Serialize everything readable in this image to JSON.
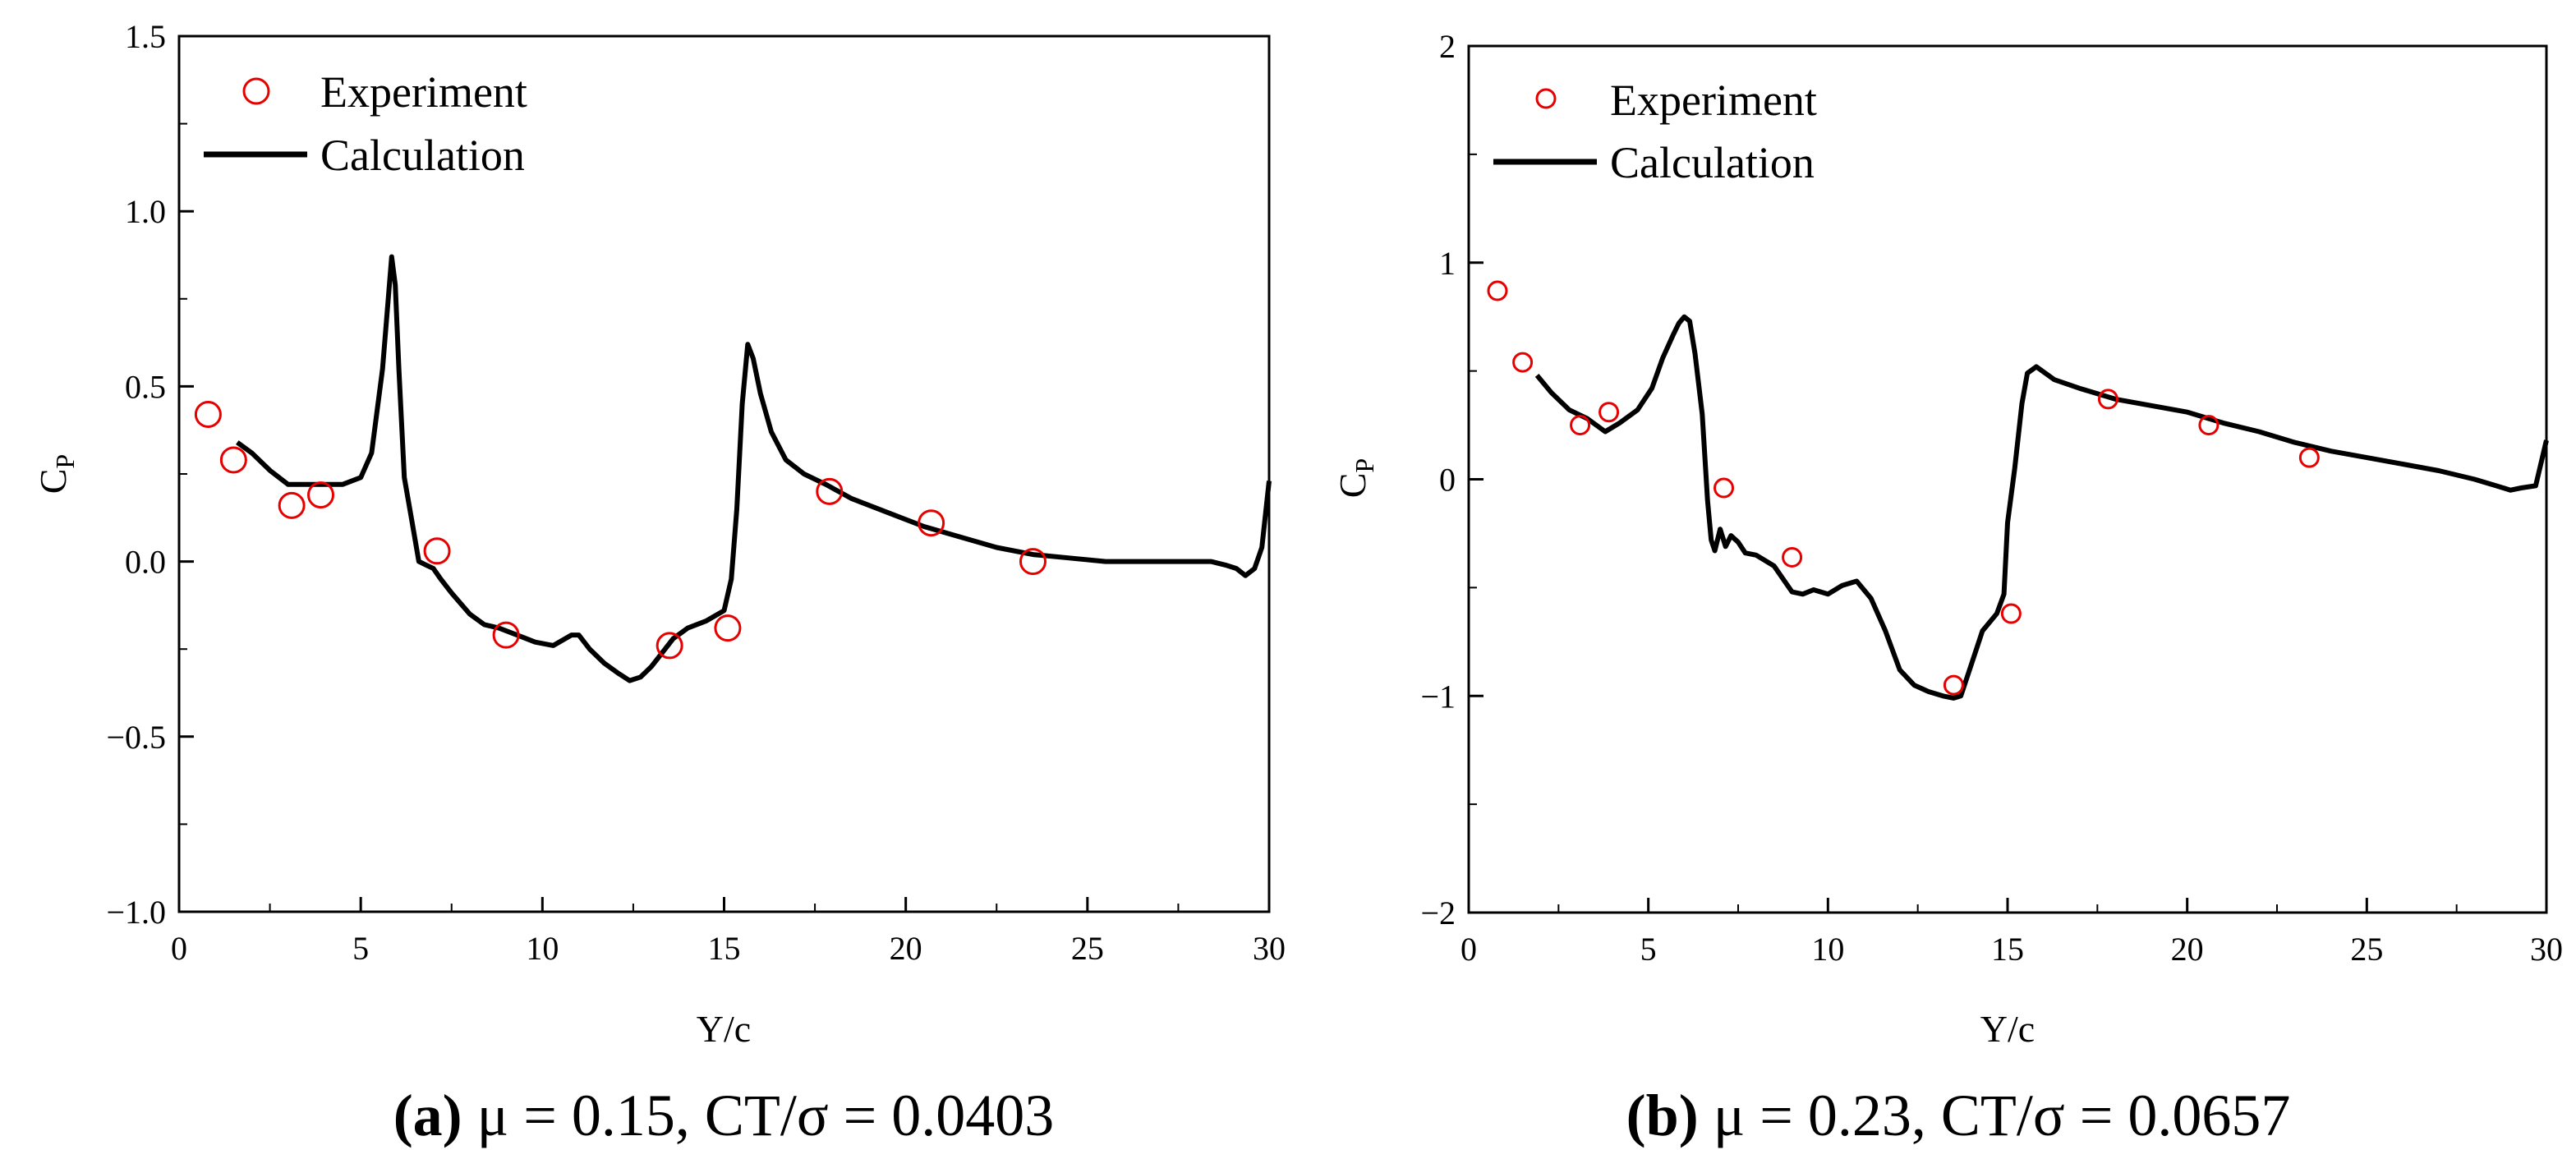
{
  "chart_data": [
    {
      "type": "line",
      "panel": "a",
      "caption_letter": "(a)",
      "caption_text": "μ = 0.15, CT/σ = 0.0403",
      "xlabel": "Y/c",
      "ylabel": "CP",
      "xlim": [
        0,
        30
      ],
      "ylim": [
        -1.0,
        1.5
      ],
      "xticks": [
        0,
        5,
        10,
        15,
        20,
        25,
        30
      ],
      "xtick_labels": [
        "0",
        "5",
        "10",
        "15",
        "20",
        "25",
        "30"
      ],
      "yticks": [
        -1.0,
        -0.5,
        0.0,
        0.5,
        1.0,
        1.5
      ],
      "ytick_labels": [
        "−1.0",
        "−0.5",
        "0.0",
        "0.5",
        "1.0",
        "1.5"
      ],
      "legend": {
        "position": "top-left",
        "experiment_label": "Experiment",
        "calculation_label": "Calculation"
      },
      "series": [
        {
          "name": "Experiment",
          "kind": "marker",
          "x": [
            0.8,
            1.5,
            3.1,
            3.9,
            7.1,
            9.0,
            13.5,
            15.1,
            17.9,
            20.7,
            23.5
          ],
          "y": [
            0.42,
            0.29,
            0.16,
            0.19,
            0.03,
            -0.21,
            -0.24,
            -0.19,
            0.2,
            0.11,
            0.0
          ]
        },
        {
          "name": "Calculation",
          "kind": "line",
          "x": [
            1.6,
            2.0,
            2.5,
            3.0,
            3.5,
            4.0,
            4.5,
            5.0,
            5.3,
            5.6,
            5.75,
            5.85,
            5.95,
            6.05,
            6.2,
            6.4,
            6.6,
            6.8,
            7.0,
            7.2,
            7.5,
            8.0,
            8.4,
            8.8,
            9.3,
            9.8,
            10.3,
            10.8,
            11.0,
            11.3,
            11.7,
            12.1,
            12.4,
            12.7,
            13.0,
            13.3,
            13.6,
            14.0,
            14.5,
            15.0,
            15.2,
            15.35,
            15.5,
            15.65,
            15.8,
            16.0,
            16.3,
            16.7,
            17.2,
            17.8,
            18.5,
            19.5,
            20.5,
            21.5,
            22.5,
            23.5,
            24.5,
            25.5,
            26.5,
            27.5,
            28.4,
            28.8,
            29.1,
            29.35,
            29.6,
            29.8,
            30.0
          ],
          "y": [
            0.34,
            0.31,
            0.26,
            0.22,
            0.22,
            0.22,
            0.22,
            0.24,
            0.31,
            0.55,
            0.74,
            0.87,
            0.79,
            0.55,
            0.24,
            0.12,
            0.0,
            -0.01,
            -0.02,
            -0.05,
            -0.09,
            -0.15,
            -0.18,
            -0.19,
            -0.21,
            -0.23,
            -0.24,
            -0.21,
            -0.21,
            -0.25,
            -0.29,
            -0.32,
            -0.34,
            -0.33,
            -0.3,
            -0.26,
            -0.22,
            -0.19,
            -0.17,
            -0.14,
            -0.05,
            0.15,
            0.45,
            0.62,
            0.58,
            0.48,
            0.37,
            0.29,
            0.25,
            0.22,
            0.18,
            0.14,
            0.1,
            0.07,
            0.04,
            0.02,
            0.01,
            0.0,
            0.0,
            0.0,
            0.0,
            -0.01,
            -0.02,
            -0.04,
            -0.02,
            0.04,
            0.23
          ]
        }
      ]
    },
    {
      "type": "line",
      "panel": "b",
      "caption_letter": "(b)",
      "caption_text": "μ = 0.23, CT/σ = 0.0657",
      "xlabel": "Y/c",
      "ylabel": "CP",
      "xlim": [
        0,
        30
      ],
      "ylim": [
        -2,
        2
      ],
      "xticks": [
        0,
        5,
        10,
        15,
        20,
        25,
        30
      ],
      "xtick_labels": [
        "0",
        "5",
        "10",
        "15",
        "20",
        "25",
        "30"
      ],
      "yticks": [
        -2,
        -1,
        0,
        1,
        2
      ],
      "ytick_labels": [
        "−2",
        "−1",
        "0",
        "1",
        "2"
      ],
      "legend": {
        "position": "top-left",
        "experiment_label": "Experiment",
        "calculation_label": "Calculation"
      },
      "series": [
        {
          "name": "Experiment",
          "kind": "marker",
          "x": [
            0.8,
            1.5,
            3.1,
            3.9,
            7.1,
            9.0,
            13.5,
            15.1,
            17.8,
            20.6,
            23.4
          ],
          "y": [
            0.87,
            0.54,
            0.25,
            0.31,
            -0.04,
            -0.36,
            -0.95,
            -0.62,
            0.37,
            0.25,
            0.1
          ]
        },
        {
          "name": "Calculation",
          "kind": "line",
          "x": [
            1.9,
            2.3,
            2.8,
            3.3,
            3.8,
            4.2,
            4.7,
            5.1,
            5.4,
            5.7,
            5.85,
            6.0,
            6.15,
            6.3,
            6.5,
            6.65,
            6.75,
            6.85,
            7.0,
            7.15,
            7.3,
            7.5,
            7.7,
            8.0,
            8.5,
            9.0,
            9.3,
            9.6,
            10.0,
            10.4,
            10.8,
            11.2,
            11.6,
            12.0,
            12.4,
            12.8,
            13.2,
            13.5,
            13.7,
            14.0,
            14.3,
            14.7,
            14.9,
            15.0,
            15.2,
            15.4,
            15.55,
            15.8,
            16.3,
            17.0,
            18.0,
            19.0,
            20.0,
            21.0,
            22.0,
            23.0,
            24.0,
            25.0,
            26.0,
            27.0,
            28.0,
            28.6,
            29.0,
            29.3,
            29.7,
            30.0
          ],
          "y": [
            0.48,
            0.4,
            0.32,
            0.28,
            0.22,
            0.26,
            0.32,
            0.42,
            0.56,
            0.67,
            0.72,
            0.75,
            0.73,
            0.58,
            0.3,
            -0.1,
            -0.28,
            -0.33,
            -0.23,
            -0.31,
            -0.26,
            -0.29,
            -0.34,
            -0.35,
            -0.4,
            -0.52,
            -0.53,
            -0.51,
            -0.53,
            -0.49,
            -0.47,
            -0.55,
            -0.7,
            -0.88,
            -0.95,
            -0.98,
            -1.0,
            -1.01,
            -1.0,
            -0.85,
            -0.7,
            -0.62,
            -0.53,
            -0.2,
            0.05,
            0.35,
            0.49,
            0.52,
            0.46,
            0.42,
            0.37,
            0.34,
            0.31,
            0.26,
            0.22,
            0.17,
            0.13,
            0.1,
            0.07,
            0.04,
            0.0,
            -0.03,
            -0.05,
            -0.04,
            -0.03,
            0.18
          ]
        }
      ]
    }
  ]
}
